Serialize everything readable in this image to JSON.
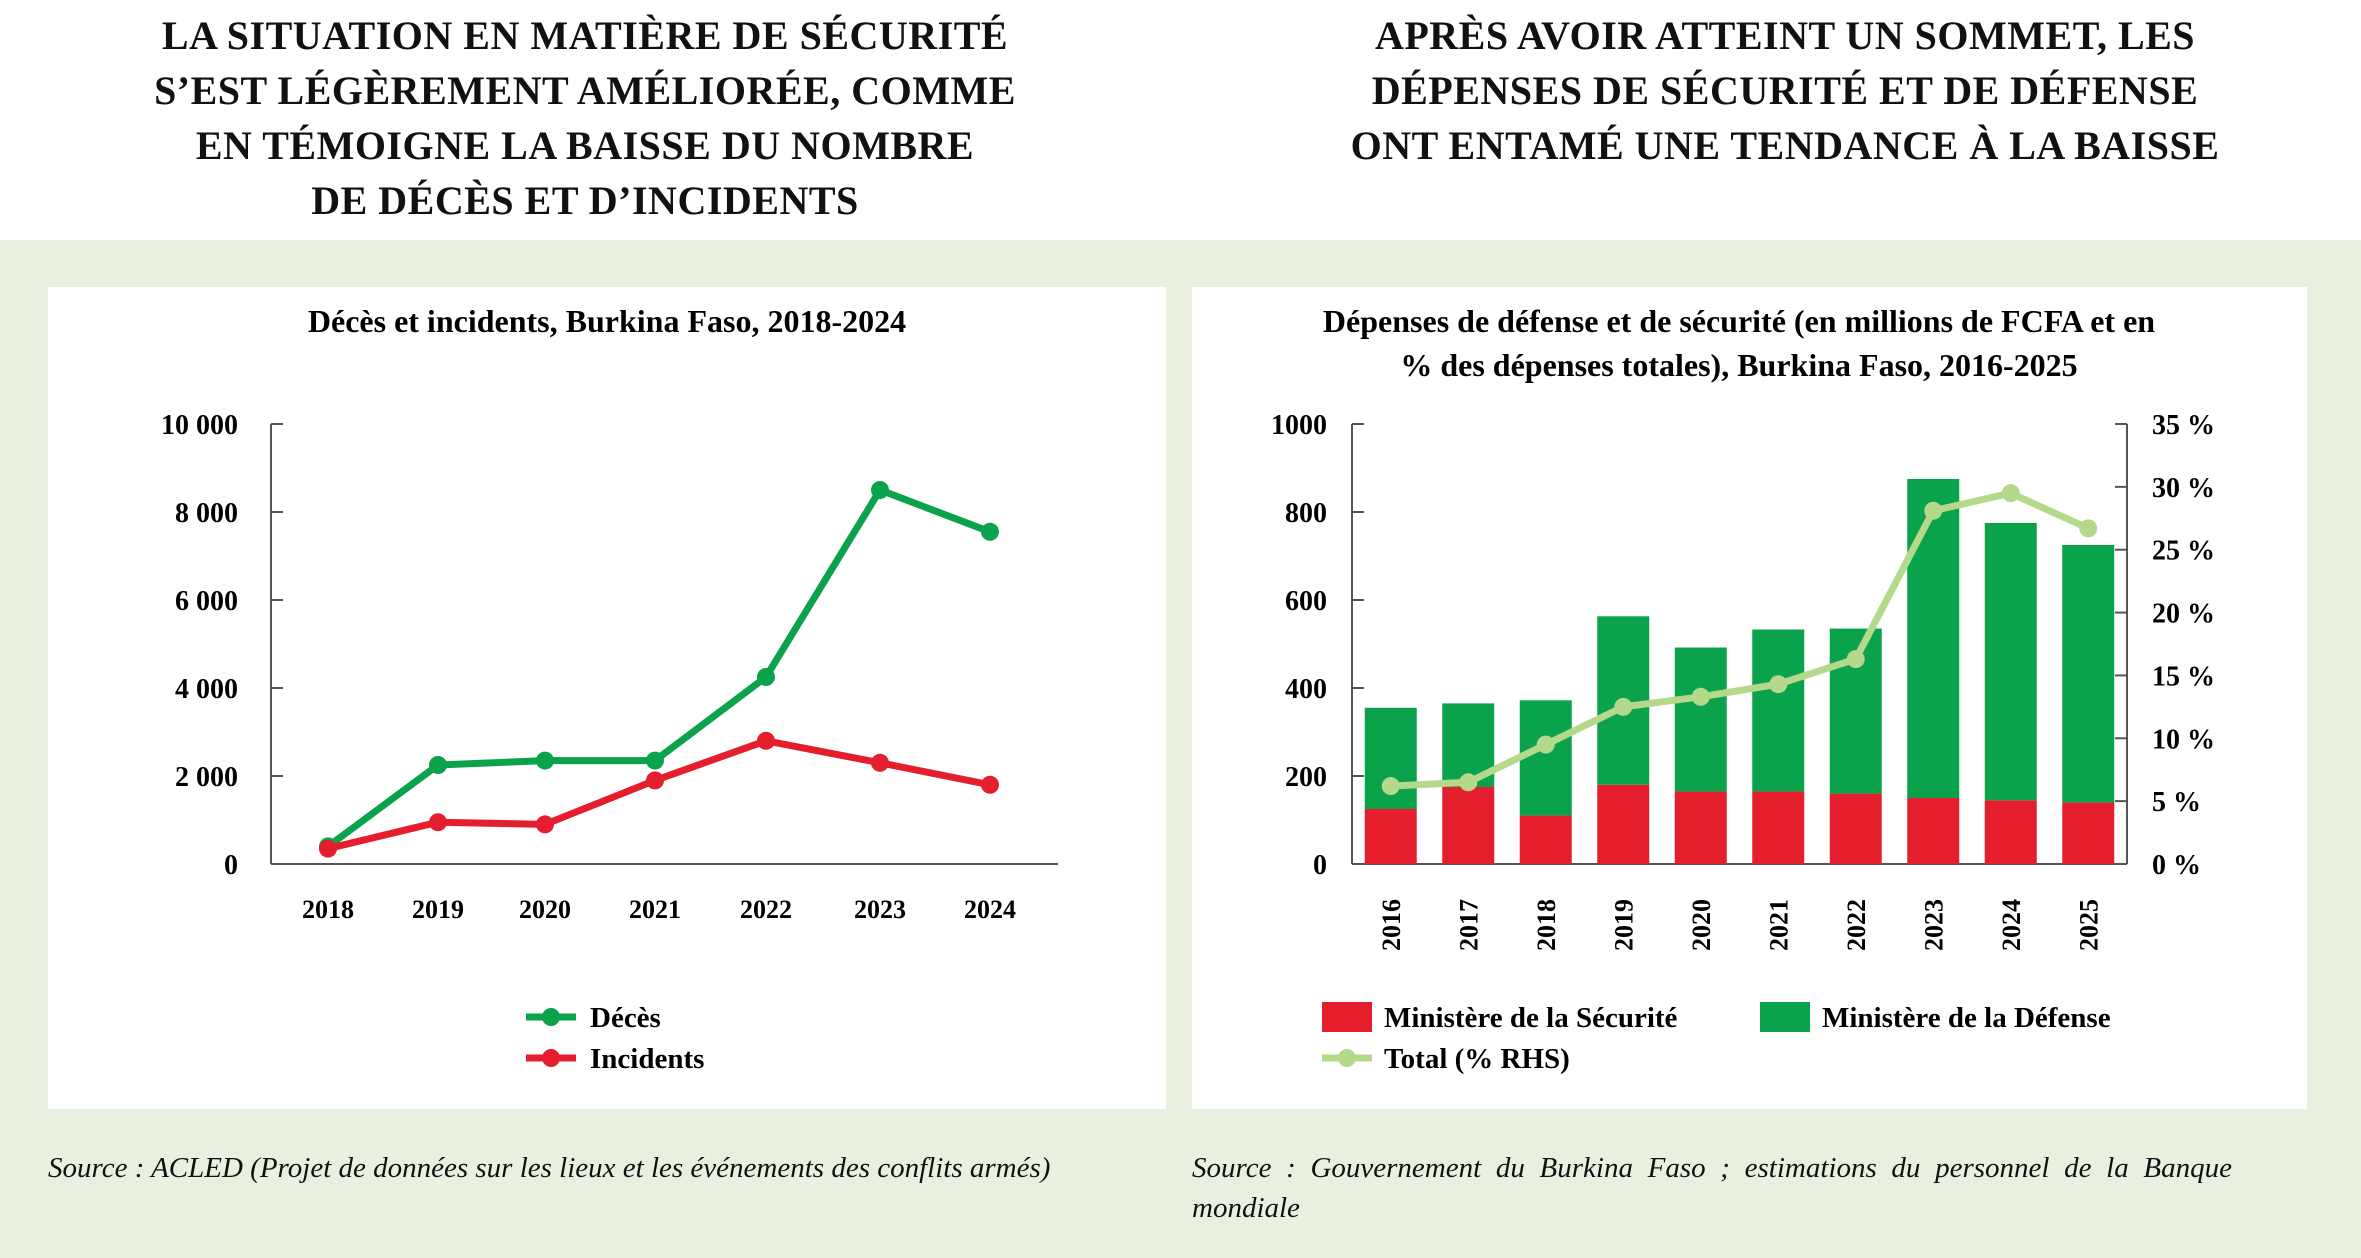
{
  "headlines": {
    "left": [
      "LA SITUATION EN MATIÈRE DE SÉCURITÉ",
      "S’EST LÉGÈREMENT AMÉLIORÉE, COMME",
      "EN TÉMOIGNE LA BAISSE DU NOMBRE",
      "DE DÉCÈS ET D’INCIDENTS"
    ],
    "right": [
      "APRÈS AVOIR ATTEINT UN SOMMET, LES",
      "DÉPENSES DE SÉCURITÉ ET DE DÉFENSE",
      "ONT ENTAMÉ UNE TENDANCE À LA BAISSE"
    ]
  },
  "sources": {
    "left": "Source : ACLED (Projet de données sur les lieux et les événements des conflits armés)",
    "right": "Source : Gouvernement du Burkina Faso ; estimations du personnel de la Banque mondiale"
  },
  "colors": {
    "green": "#0aa24b",
    "red": "#e51e2d",
    "light_green": "#b5d98a",
    "band": "#e9f0df"
  },
  "chart_data": [
    {
      "type": "line",
      "title": "Décès et incidents, Burkina Faso, 2018-2024",
      "x": [
        "2018",
        "2019",
        "2020",
        "2021",
        "2022",
        "2023",
        "2024"
      ],
      "ylim": [
        0,
        10000
      ],
      "yticks": [
        0,
        2000,
        4000,
        6000,
        8000,
        10000
      ],
      "ytick_labels": [
        "0",
        "2 000",
        "4 000",
        "6 000",
        "8 000",
        "10 000"
      ],
      "grid": false,
      "legend": "bottom",
      "series": [
        {
          "name": "Décès",
          "color": "#0aa24b",
          "values": [
            400,
            2250,
            2350,
            2350,
            4250,
            8500,
            7550
          ]
        },
        {
          "name": "Incidents",
          "color": "#e51e2d",
          "values": [
            350,
            950,
            900,
            1900,
            2800,
            2300,
            1800
          ]
        }
      ]
    },
    {
      "type": "bar",
      "stacked": true,
      "title": "Dépenses de défense et de sécurité (en millions de FCFA et en % des dépenses totales), Burkina Faso, 2016-2025",
      "categories": [
        "2016",
        "2017",
        "2018",
        "2019",
        "2020",
        "2021",
        "2022",
        "2023",
        "2024",
        "2025"
      ],
      "ylim": [
        0,
        1000
      ],
      "yticks": [
        0,
        200,
        400,
        600,
        800,
        1000
      ],
      "ytick_labels": [
        "0",
        "200",
        "400",
        "600",
        "800",
        "1000"
      ],
      "y2lim": [
        0,
        35
      ],
      "y2ticks": [
        0,
        5,
        10,
        15,
        20,
        25,
        30,
        35
      ],
      "y2tick_labels": [
        "0 %",
        "5 %",
        "10 %",
        "15 %",
        "20 %",
        "25 %",
        "30 %",
        "35 %"
      ],
      "grid": false,
      "legend": "bottom",
      "series": [
        {
          "name": "Ministère de la Sécurité",
          "color": "#e51e2d",
          "axis": "left",
          "values": [
            125,
            175,
            110,
            180,
            165,
            165,
            160,
            150,
            145,
            140
          ]
        },
        {
          "name": "Ministère de la Défense",
          "color": "#0aa24b",
          "axis": "left",
          "values": [
            230,
            190,
            262,
            383,
            327,
            368,
            375,
            725,
            630,
            585
          ]
        },
        {
          "name": "Total (% RHS)",
          "color": "#b5d98a",
          "axis": "right",
          "type": "line",
          "values": [
            6.2,
            6.5,
            9.5,
            12.5,
            13.3,
            14.3,
            16.3,
            28.1,
            29.5,
            26.7
          ]
        }
      ]
    }
  ]
}
